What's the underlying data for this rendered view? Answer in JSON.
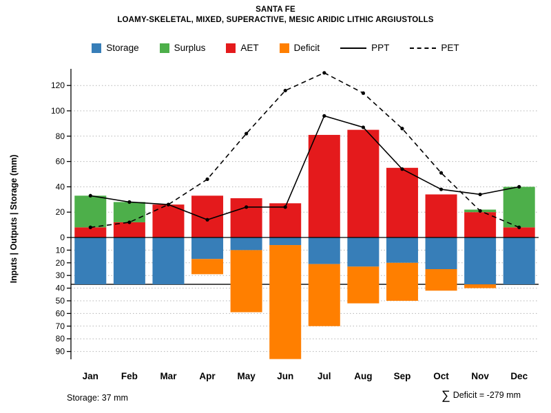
{
  "title": "SANTA FE",
  "subtitle": "LOAMY-SKELETAL, MIXED, SUPERACTIVE, MESIC ARIDIC LITHIC ARGIUSTOLLS",
  "legend": [
    {
      "label": "Storage",
      "type": "swatch",
      "color": "#377EB8"
    },
    {
      "label": "Surplus",
      "type": "swatch",
      "color": "#4DAF4A"
    },
    {
      "label": "AET",
      "type": "swatch",
      "color": "#E41A1C"
    },
    {
      "label": "Deficit",
      "type": "swatch",
      "color": "#FF7F00"
    },
    {
      "label": "PPT",
      "type": "line-solid",
      "color": "#000000"
    },
    {
      "label": "PET",
      "type": "line-dashed",
      "color": "#000000"
    }
  ],
  "footer": {
    "storage_text": "Storage: 37 mm",
    "deficit_sigma": "∑",
    "deficit_text": "Deficit = -279 mm"
  },
  "chart_data": {
    "type": "bar",
    "subtype": "water-balance stacked bars with overlaid lines",
    "categories": [
      "Jan",
      "Feb",
      "Mar",
      "Apr",
      "May",
      "Jun",
      "Jul",
      "Aug",
      "Sep",
      "Oct",
      "Nov",
      "Dec"
    ],
    "series": [
      {
        "name": "AET",
        "role": "bar-positive",
        "color": "#E41A1C",
        "values": [
          8,
          12,
          26,
          33,
          31,
          27,
          81,
          85,
          55,
          34,
          20,
          8
        ]
      },
      {
        "name": "Surplus",
        "role": "bar-positive-stacked",
        "color": "#4DAF4A",
        "values": [
          25,
          16,
          0,
          0,
          0,
          0,
          0,
          0,
          0,
          0,
          2,
          32
        ]
      },
      {
        "name": "Storage",
        "role": "bar-negative",
        "color": "#377EB8",
        "values": [
          37,
          37,
          37,
          17,
          10,
          6,
          21,
          23,
          20,
          25,
          37,
          37
        ]
      },
      {
        "name": "Deficit",
        "role": "bar-negative-stacked",
        "color": "#FF7F00",
        "values": [
          0,
          0,
          0,
          12,
          49,
          90,
          49,
          29,
          30,
          17,
          3,
          0
        ]
      },
      {
        "name": "PPT",
        "role": "line-solid",
        "color": "#000000",
        "values": [
          33,
          28,
          26,
          14,
          24,
          24,
          96,
          87,
          54,
          38,
          34,
          40
        ]
      },
      {
        "name": "PET",
        "role": "line-dashed",
        "color": "#000000",
        "values": [
          8,
          12,
          26,
          46,
          82,
          116,
          130,
          114,
          86,
          51,
          21,
          8
        ]
      }
    ],
    "ylabel": "Inputs | Outputs | Storage   (mm)",
    "yticks_positive": [
      0,
      20,
      40,
      60,
      80,
      100,
      120
    ],
    "yticks_negative": [
      10,
      20,
      30,
      40,
      50,
      60,
      70,
      80,
      90
    ],
    "storage_line": 37,
    "grid": true,
    "legend_position": "top-center"
  }
}
